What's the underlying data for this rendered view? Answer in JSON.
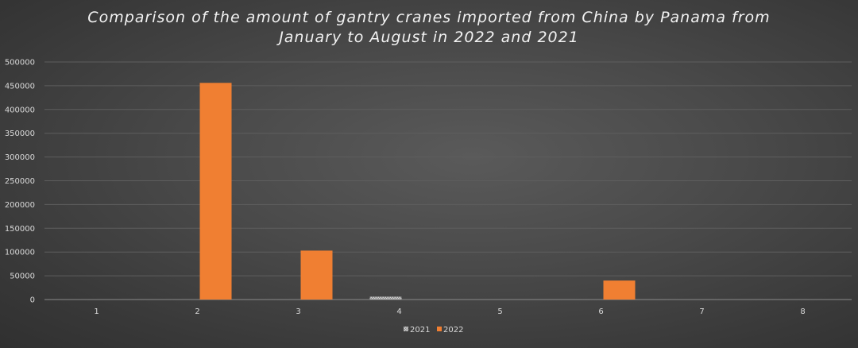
{
  "chart_data": {
    "type": "bar",
    "title_lines": [
      "Comparison of the amount of gantry cranes imported from China by Panama from",
      "January to August in 2022 and 2021"
    ],
    "categories": [
      "1",
      "2",
      "3",
      "4",
      "5",
      "6",
      "7",
      "8"
    ],
    "series": [
      {
        "name": "2021",
        "color": "#a6a6a6",
        "pattern": "dotted",
        "values": [
          0,
          0,
          0,
          6000,
          0,
          0,
          0,
          0
        ]
      },
      {
        "name": "2022",
        "color": "#f07f32",
        "pattern": "solid",
        "values": [
          0,
          456000,
          103000,
          0,
          0,
          40000,
          0,
          0
        ]
      }
    ],
    "ylim": [
      0,
      500000
    ],
    "yticks": [
      "0",
      "50000",
      "100000",
      "150000",
      "200000",
      "250000",
      "300000",
      "350000",
      "400000",
      "450000",
      "500000"
    ],
    "grid": true,
    "legend_position": "bottom",
    "xlabel": "",
    "ylabel": ""
  }
}
